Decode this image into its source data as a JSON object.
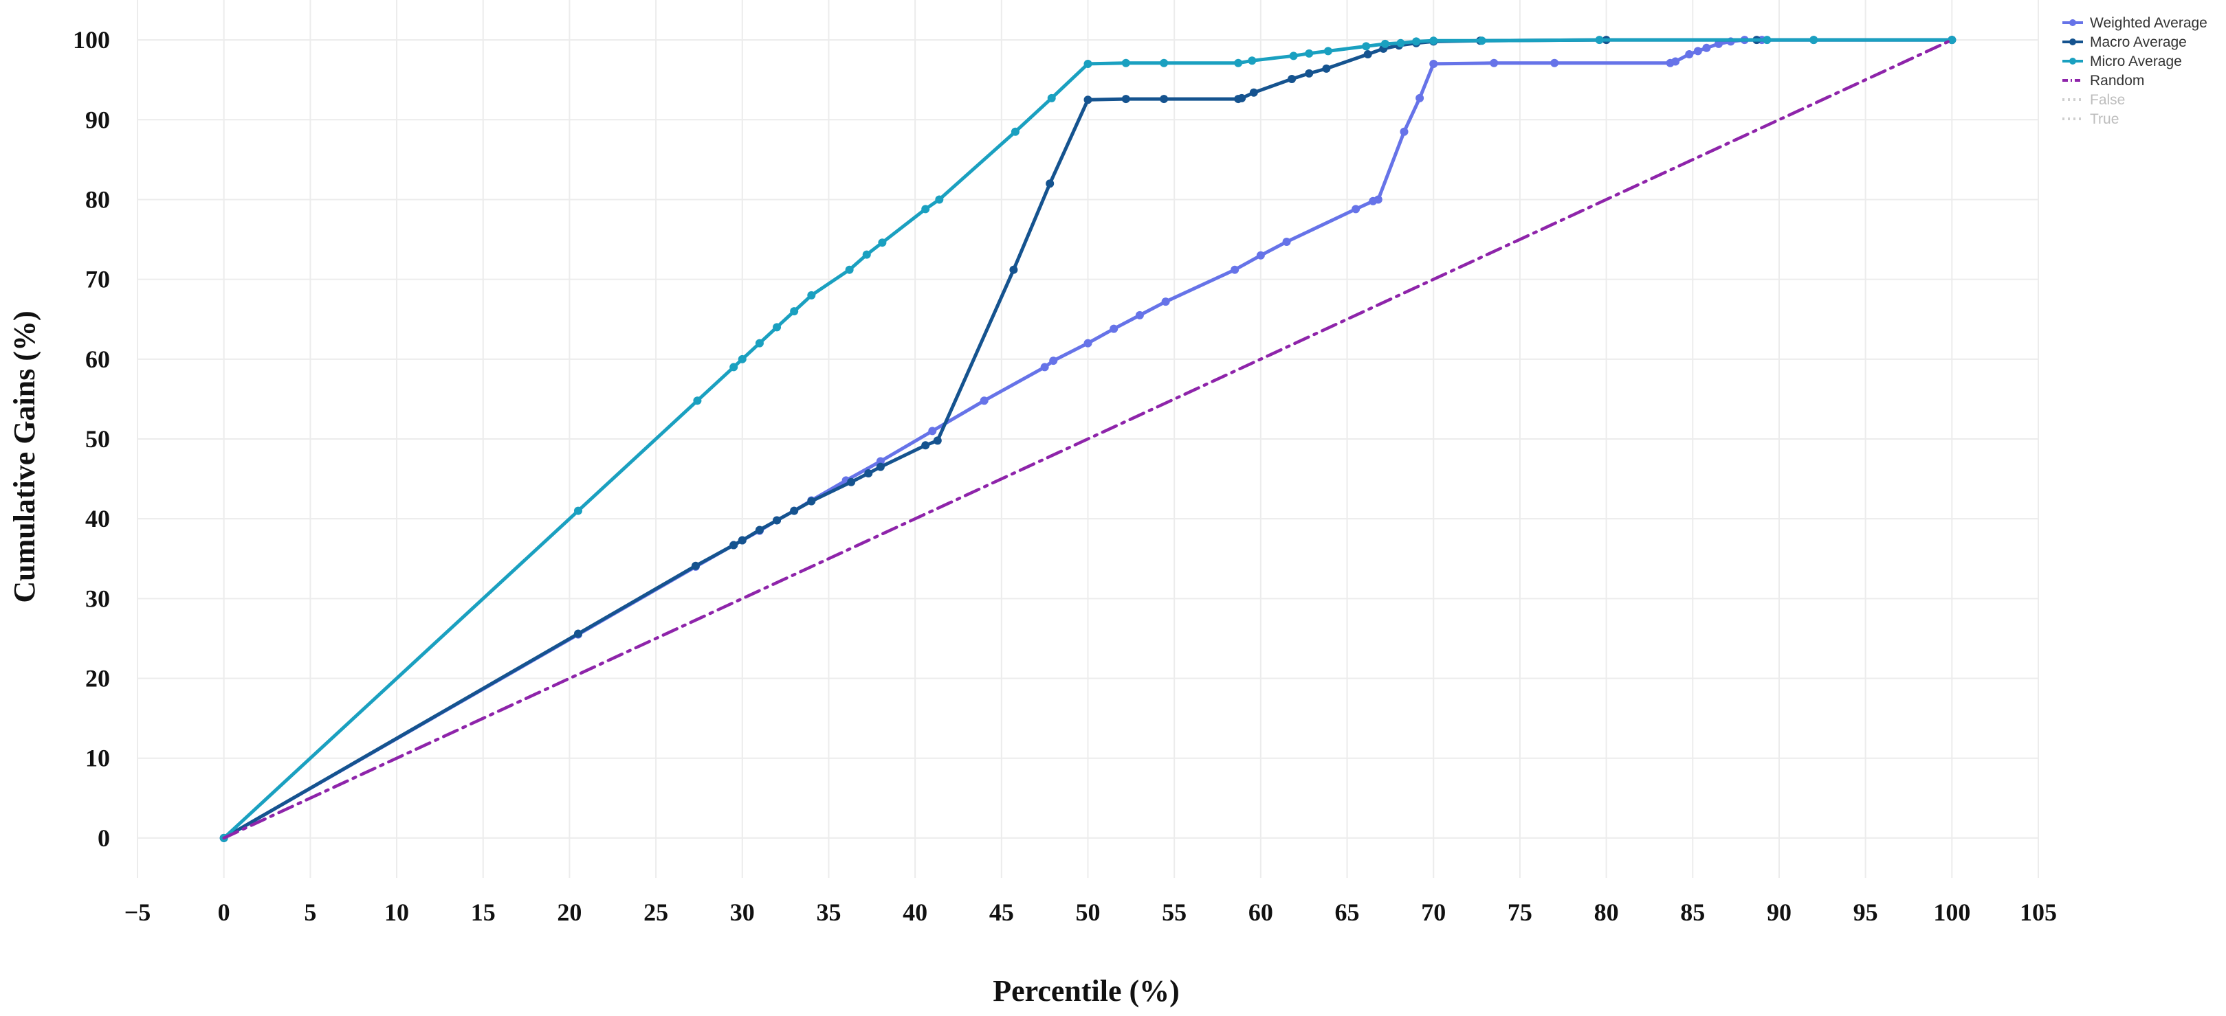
{
  "chart_data": {
    "type": "line",
    "xlabel": "Percentile (%)",
    "ylabel": "Cumulative Gains (%)",
    "xlim": [
      -5,
      105
    ],
    "ylim": [
      -5,
      105
    ],
    "x_ticks": [
      -5,
      0,
      5,
      10,
      15,
      20,
      25,
      30,
      35,
      40,
      45,
      50,
      55,
      60,
      65,
      70,
      75,
      80,
      85,
      90,
      95,
      100,
      105
    ],
    "y_ticks": [
      0,
      10,
      20,
      30,
      40,
      50,
      60,
      70,
      80,
      90,
      100
    ],
    "grid": true,
    "legend_position": "top-right",
    "legend": [
      {
        "name": "Weighted Average",
        "color": "#6673e8",
        "style": "solid",
        "muted": false
      },
      {
        "name": "Macro Average",
        "color": "#15538f",
        "style": "solid",
        "muted": false
      },
      {
        "name": "Micro Average",
        "color": "#1aa0c0",
        "style": "solid",
        "muted": false
      },
      {
        "name": "Random",
        "color": "#8e24aa",
        "style": "dashdot",
        "muted": false
      },
      {
        "name": "False",
        "color": "#cfcfcf",
        "style": "dotted",
        "muted": true
      },
      {
        "name": "True",
        "color": "#cfcfcf",
        "style": "dotted",
        "muted": true
      }
    ],
    "series": [
      {
        "name": "Weighted Average",
        "color": "#6673e8",
        "style": "solid",
        "points": [
          [
            0,
            0
          ],
          [
            20.5,
            25.5
          ],
          [
            27.3,
            34
          ],
          [
            29.5,
            36.7
          ],
          [
            30,
            37.3
          ],
          [
            31,
            38.5
          ],
          [
            32,
            39.8
          ],
          [
            33,
            41
          ],
          [
            34,
            42.3
          ],
          [
            36,
            44.8
          ],
          [
            38,
            47.2
          ],
          [
            41,
            51
          ],
          [
            44,
            54.8
          ],
          [
            47.5,
            59
          ],
          [
            48,
            59.8
          ],
          [
            50,
            62
          ],
          [
            51.5,
            63.8
          ],
          [
            53,
            65.5
          ],
          [
            54.5,
            67.2
          ],
          [
            58.5,
            71.2
          ],
          [
            60,
            73
          ],
          [
            61.5,
            74.7
          ],
          [
            65.5,
            78.8
          ],
          [
            66.5,
            79.8
          ],
          [
            66.8,
            80
          ],
          [
            68.3,
            88.5
          ],
          [
            69.2,
            92.7
          ],
          [
            70,
            97
          ],
          [
            73.5,
            97.1
          ],
          [
            77,
            97.1
          ],
          [
            83.7,
            97.1
          ],
          [
            84,
            97.3
          ],
          [
            84.8,
            98.2
          ],
          [
            85.3,
            98.6
          ],
          [
            85.8,
            99
          ],
          [
            86.5,
            99.5
          ],
          [
            87.2,
            99.8
          ],
          [
            88,
            100
          ],
          [
            89,
            100
          ],
          [
            92,
            100
          ],
          [
            100,
            100
          ]
        ]
      },
      {
        "name": "Macro Average",
        "color": "#15538f",
        "style": "solid",
        "points": [
          [
            0,
            0
          ],
          [
            20.5,
            25.6
          ],
          [
            27.3,
            34.1
          ],
          [
            29.5,
            36.7
          ],
          [
            30,
            37.3
          ],
          [
            31,
            38.6
          ],
          [
            32,
            39.8
          ],
          [
            33,
            41
          ],
          [
            34,
            42.2
          ],
          [
            36.3,
            44.6
          ],
          [
            37.3,
            45.7
          ],
          [
            38,
            46.5
          ],
          [
            40.6,
            49.2
          ],
          [
            41.3,
            49.8
          ],
          [
            45.7,
            71.2
          ],
          [
            47.8,
            82
          ],
          [
            50,
            92.5
          ],
          [
            52.2,
            92.6
          ],
          [
            54.4,
            92.6
          ],
          [
            58.7,
            92.6
          ],
          [
            58.9,
            92.7
          ],
          [
            59.6,
            93.4
          ],
          [
            61.8,
            95.1
          ],
          [
            62.8,
            95.8
          ],
          [
            63.8,
            96.4
          ],
          [
            66.2,
            98.2
          ],
          [
            67.1,
            98.9
          ],
          [
            68,
            99.3
          ],
          [
            69,
            99.6
          ],
          [
            70,
            99.8
          ],
          [
            72.7,
            99.9
          ],
          [
            80,
            100
          ],
          [
            88.7,
            100
          ],
          [
            100,
            100
          ]
        ]
      },
      {
        "name": "Micro Average",
        "color": "#1aa0c0",
        "style": "solid",
        "points": [
          [
            0,
            0
          ],
          [
            20.5,
            41
          ],
          [
            27.4,
            54.8
          ],
          [
            29.5,
            59
          ],
          [
            30,
            60
          ],
          [
            31,
            62
          ],
          [
            32,
            64
          ],
          [
            33,
            66
          ],
          [
            34,
            68
          ],
          [
            36.2,
            71.2
          ],
          [
            37.2,
            73.1
          ],
          [
            38.1,
            74.6
          ],
          [
            40.6,
            78.8
          ],
          [
            41.4,
            80
          ],
          [
            45.8,
            88.5
          ],
          [
            47.9,
            92.7
          ],
          [
            50,
            97
          ],
          [
            52.2,
            97.1
          ],
          [
            54.4,
            97.1
          ],
          [
            58.7,
            97.1
          ],
          [
            59.5,
            97.4
          ],
          [
            61.9,
            98
          ],
          [
            62.8,
            98.3
          ],
          [
            63.9,
            98.6
          ],
          [
            66.1,
            99.2
          ],
          [
            67.2,
            99.5
          ],
          [
            68.1,
            99.6
          ],
          [
            69,
            99.8
          ],
          [
            70,
            99.9
          ],
          [
            72.8,
            99.9
          ],
          [
            79.6,
            100
          ],
          [
            89.3,
            100
          ],
          [
            92,
            100
          ],
          [
            100,
            100
          ]
        ]
      },
      {
        "name": "Random",
        "color": "#8e24aa",
        "style": "dashdot",
        "points": [
          [
            0,
            0
          ],
          [
            100,
            100
          ]
        ]
      }
    ]
  }
}
